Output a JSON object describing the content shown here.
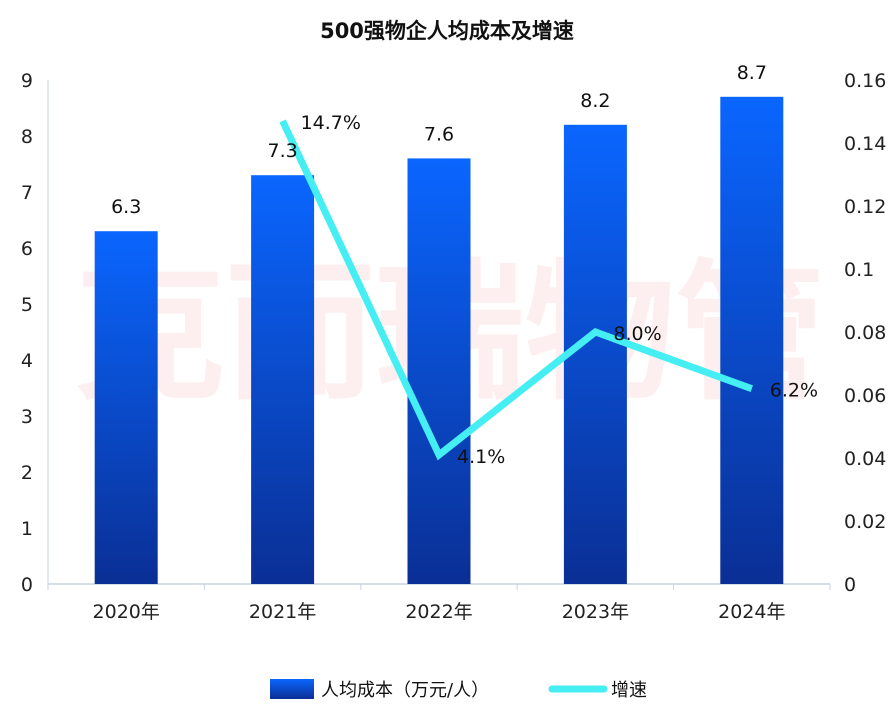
{
  "chart_data": {
    "type": "bar",
    "title": "500强物企人均成本及增速",
    "watermark": "克而瑞物管",
    "categories": [
      "2020年",
      "2021年",
      "2022年",
      "2023年",
      "2024年"
    ],
    "series": [
      {
        "name": "人均成本（万元/人）",
        "type": "bar",
        "axis": "left",
        "values": [
          6.3,
          7.3,
          7.6,
          8.2,
          8.7
        ],
        "labels": [
          "6.3",
          "7.3",
          "7.6",
          "8.2",
          "8.7"
        ],
        "color_top": "#0a66ff",
        "color_bottom": "#0a2f95"
      },
      {
        "name": "增速",
        "type": "line",
        "axis": "right",
        "values": [
          null,
          0.147,
          0.041,
          0.08,
          0.062
        ],
        "labels": [
          "",
          "14.7%",
          "4.1%",
          "8.0%",
          "6.2%"
        ],
        "color": "#44eef2"
      }
    ],
    "y_left": {
      "min": 0,
      "max": 9,
      "ticks": [
        "0",
        "1",
        "2",
        "3",
        "4",
        "5",
        "6",
        "7",
        "8",
        "9"
      ]
    },
    "y_right": {
      "min": 0,
      "max": 0.16,
      "ticks": [
        "0",
        "0.02",
        "0.04",
        "0.06",
        "0.08",
        "0.1",
        "0.12",
        "0.14",
        "0.16"
      ]
    },
    "grid": false,
    "legend_position": "bottom"
  }
}
